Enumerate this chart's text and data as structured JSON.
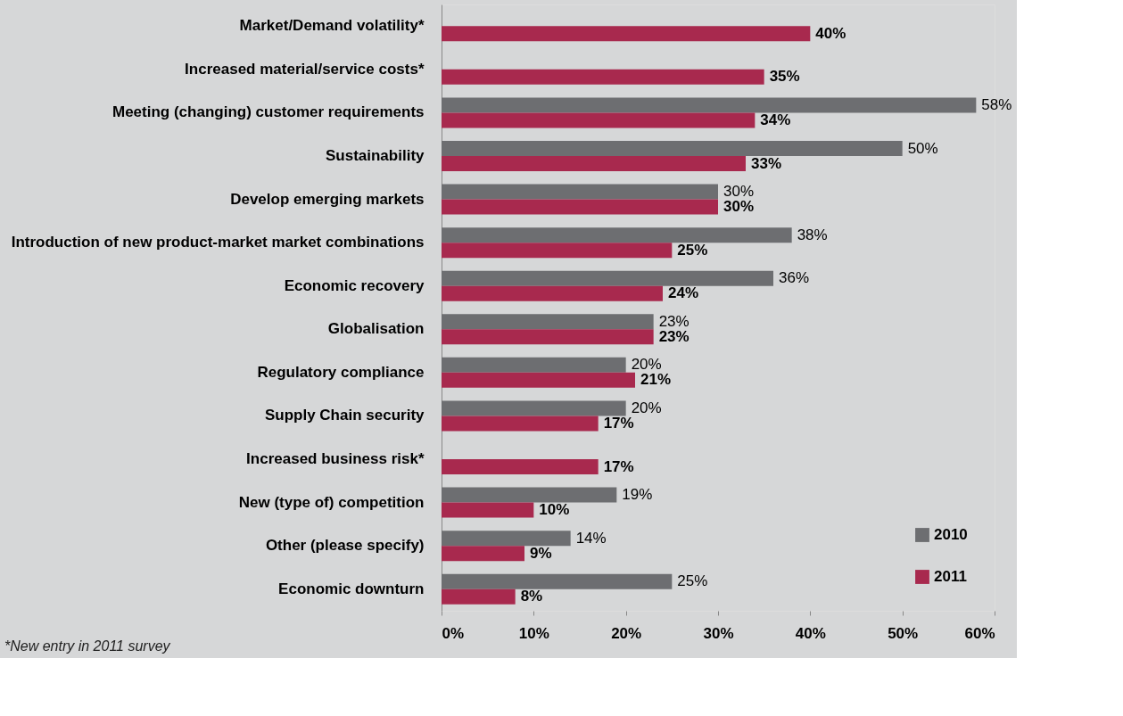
{
  "chart_data": {
    "type": "bar",
    "orientation": "horizontal",
    "categories": [
      "Market/Demand volatility*",
      "Increased material/service costs*",
      "Meeting (changing) customer requirements",
      "Sustainability",
      "Develop emerging markets",
      "Introduction of new product-market market combinations",
      "Economic recovery",
      "Globalisation",
      "Regulatory compliance",
      "Supply Chain security",
      "Increased business risk*",
      "New (type of) competition",
      "Other (please specify)",
      "Economic downturn"
    ],
    "series": [
      {
        "name": "2010",
        "color": "#6d6e71",
        "values": [
          null,
          null,
          58,
          50,
          30,
          38,
          36,
          23,
          20,
          20,
          null,
          19,
          14,
          25
        ],
        "value_labels": [
          null,
          null,
          "58%",
          "50%",
          "30%",
          "38%",
          "36%",
          "23%",
          "20%",
          "20%",
          null,
          "19%",
          "14%",
          "25%"
        ]
      },
      {
        "name": "2011",
        "color": "#a8294e",
        "values": [
          40,
          35,
          34,
          33,
          30,
          25,
          24,
          23,
          21,
          17,
          17,
          10,
          9,
          8
        ],
        "value_labels": [
          "40%",
          "35%",
          "34%",
          "33%",
          "30%",
          "25%",
          "24%",
          "23%",
          "21%",
          "17%",
          "17%",
          "10%",
          "9%",
          "8%"
        ]
      }
    ],
    "xlim": [
      0,
      60
    ],
    "xticks": [
      {
        "value": 0,
        "label": "0%"
      },
      {
        "value": 10,
        "label": "10%"
      },
      {
        "value": 20,
        "label": "20%"
      },
      {
        "value": 30,
        "label": "30%"
      },
      {
        "value": 40,
        "label": "40%"
      },
      {
        "value": 50,
        "label": "50%"
      },
      {
        "value": 60,
        "label": "60%"
      }
    ],
    "grid": false,
    "legend": "bottom right",
    "annotations": [
      "*New entry in 2011 survey"
    ]
  }
}
